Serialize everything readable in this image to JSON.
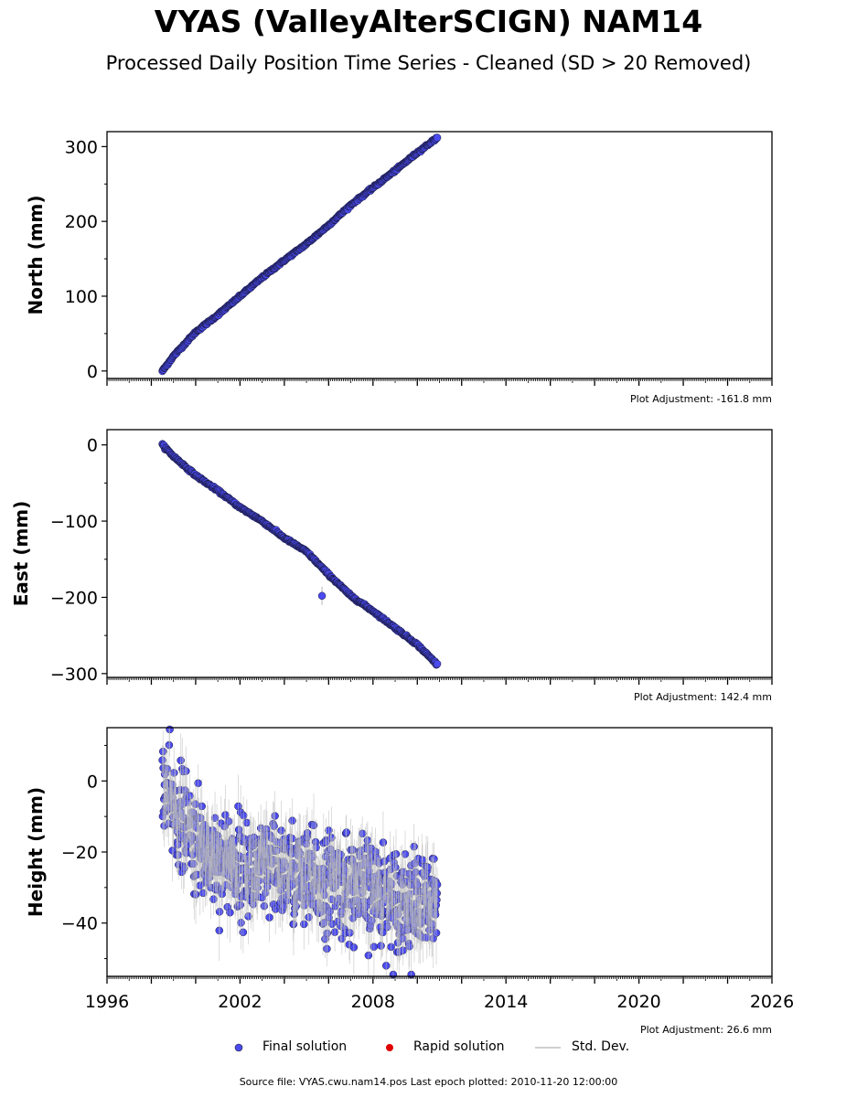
{
  "title": "VYAS (ValleyAlterSCIGN) NAM14",
  "subtitle": "Processed Daily Position Time Series - Cleaned (SD > 20 Removed)",
  "legend": {
    "final": "Final solution",
    "rapid": "Rapid solution",
    "std": "Std. Dev."
  },
  "footer": "Source file: VYAS.cwu.nam14.pos  Last epoch plotted: 2010-11-20 12:00:00",
  "colors": {
    "final": "#4a4af0",
    "rapid": "#e00000",
    "std": "#bfbfbf"
  },
  "chart_data": [
    {
      "type": "scatter",
      "ylabel": "North (mm)",
      "adjustment": "Plot Adjustment: -161.8 mm",
      "xlim": [
        1996,
        2026
      ],
      "ylim": [
        -10,
        320
      ],
      "yticks": [
        0,
        100,
        200,
        300
      ],
      "ytick_labels": [
        "0",
        "100",
        "200",
        "300"
      ],
      "xtick_labels": [],
      "series": [
        {
          "name": "Final solution",
          "x": [
            1998.5,
            1999.0,
            2000.0,
            2001.0,
            2002.0,
            2003.0,
            2004.0,
            2005.0,
            2006.0,
            2007.0,
            2008.0,
            2009.0,
            2010.0,
            2010.9
          ],
          "y": [
            0,
            20,
            52,
            75,
            100,
            125,
            148,
            170,
            195,
            222,
            245,
            268,
            292,
            312
          ]
        }
      ]
    },
    {
      "type": "scatter",
      "ylabel": "East (mm)",
      "adjustment": "Plot Adjustment: 142.4 mm",
      "xlim": [
        1996,
        2026
      ],
      "ylim": [
        -305,
        20
      ],
      "yticks": [
        0,
        -100,
        -200,
        -300
      ],
      "ytick_labels": [
        "0",
        "−100",
        "−200",
        "−300"
      ],
      "xtick_labels": [],
      "series": [
        {
          "name": "Final solution",
          "x": [
            1998.5,
            1999.0,
            2000.0,
            2001.0,
            2002.0,
            2003.0,
            2004.0,
            2005.0,
            2006.0,
            2007.0,
            2008.0,
            2009.0,
            2010.0,
            2010.9
          ],
          "y": [
            0,
            -15,
            -40,
            -60,
            -82,
            -100,
            -122,
            -140,
            -170,
            -198,
            -218,
            -240,
            -262,
            -288
          ]
        }
      ],
      "outliers": [
        {
          "x": 2005.7,
          "y": -198
        }
      ]
    },
    {
      "type": "scatter",
      "ylabel": "Height (mm)",
      "adjustment": "Plot Adjustment: 26.6 mm",
      "xlim": [
        1996,
        2026
      ],
      "ylim": [
        -55,
        15
      ],
      "yticks": [
        0,
        -20,
        -40
      ],
      "ytick_labels": [
        "0",
        "−20",
        "−40"
      ],
      "xtick_labels": [
        "1996",
        "2002",
        "2008",
        "2014",
        "2020",
        "2026"
      ],
      "series": [
        {
          "name": "Final solution",
          "x": [
            1998.5,
            1999.0,
            1999.5,
            2000.0,
            2001.0,
            2002.0,
            2003.0,
            2004.0,
            2005.0,
            2006.0,
            2007.0,
            2008.0,
            2009.0,
            2010.0,
            2010.9
          ],
          "y": [
            -2,
            -8,
            -12,
            -18,
            -22,
            -24,
            -26,
            -25,
            -28,
            -29,
            -30,
            -31,
            -33,
            -35,
            -36
          ],
          "scatter_sd": 7
        }
      ]
    }
  ]
}
